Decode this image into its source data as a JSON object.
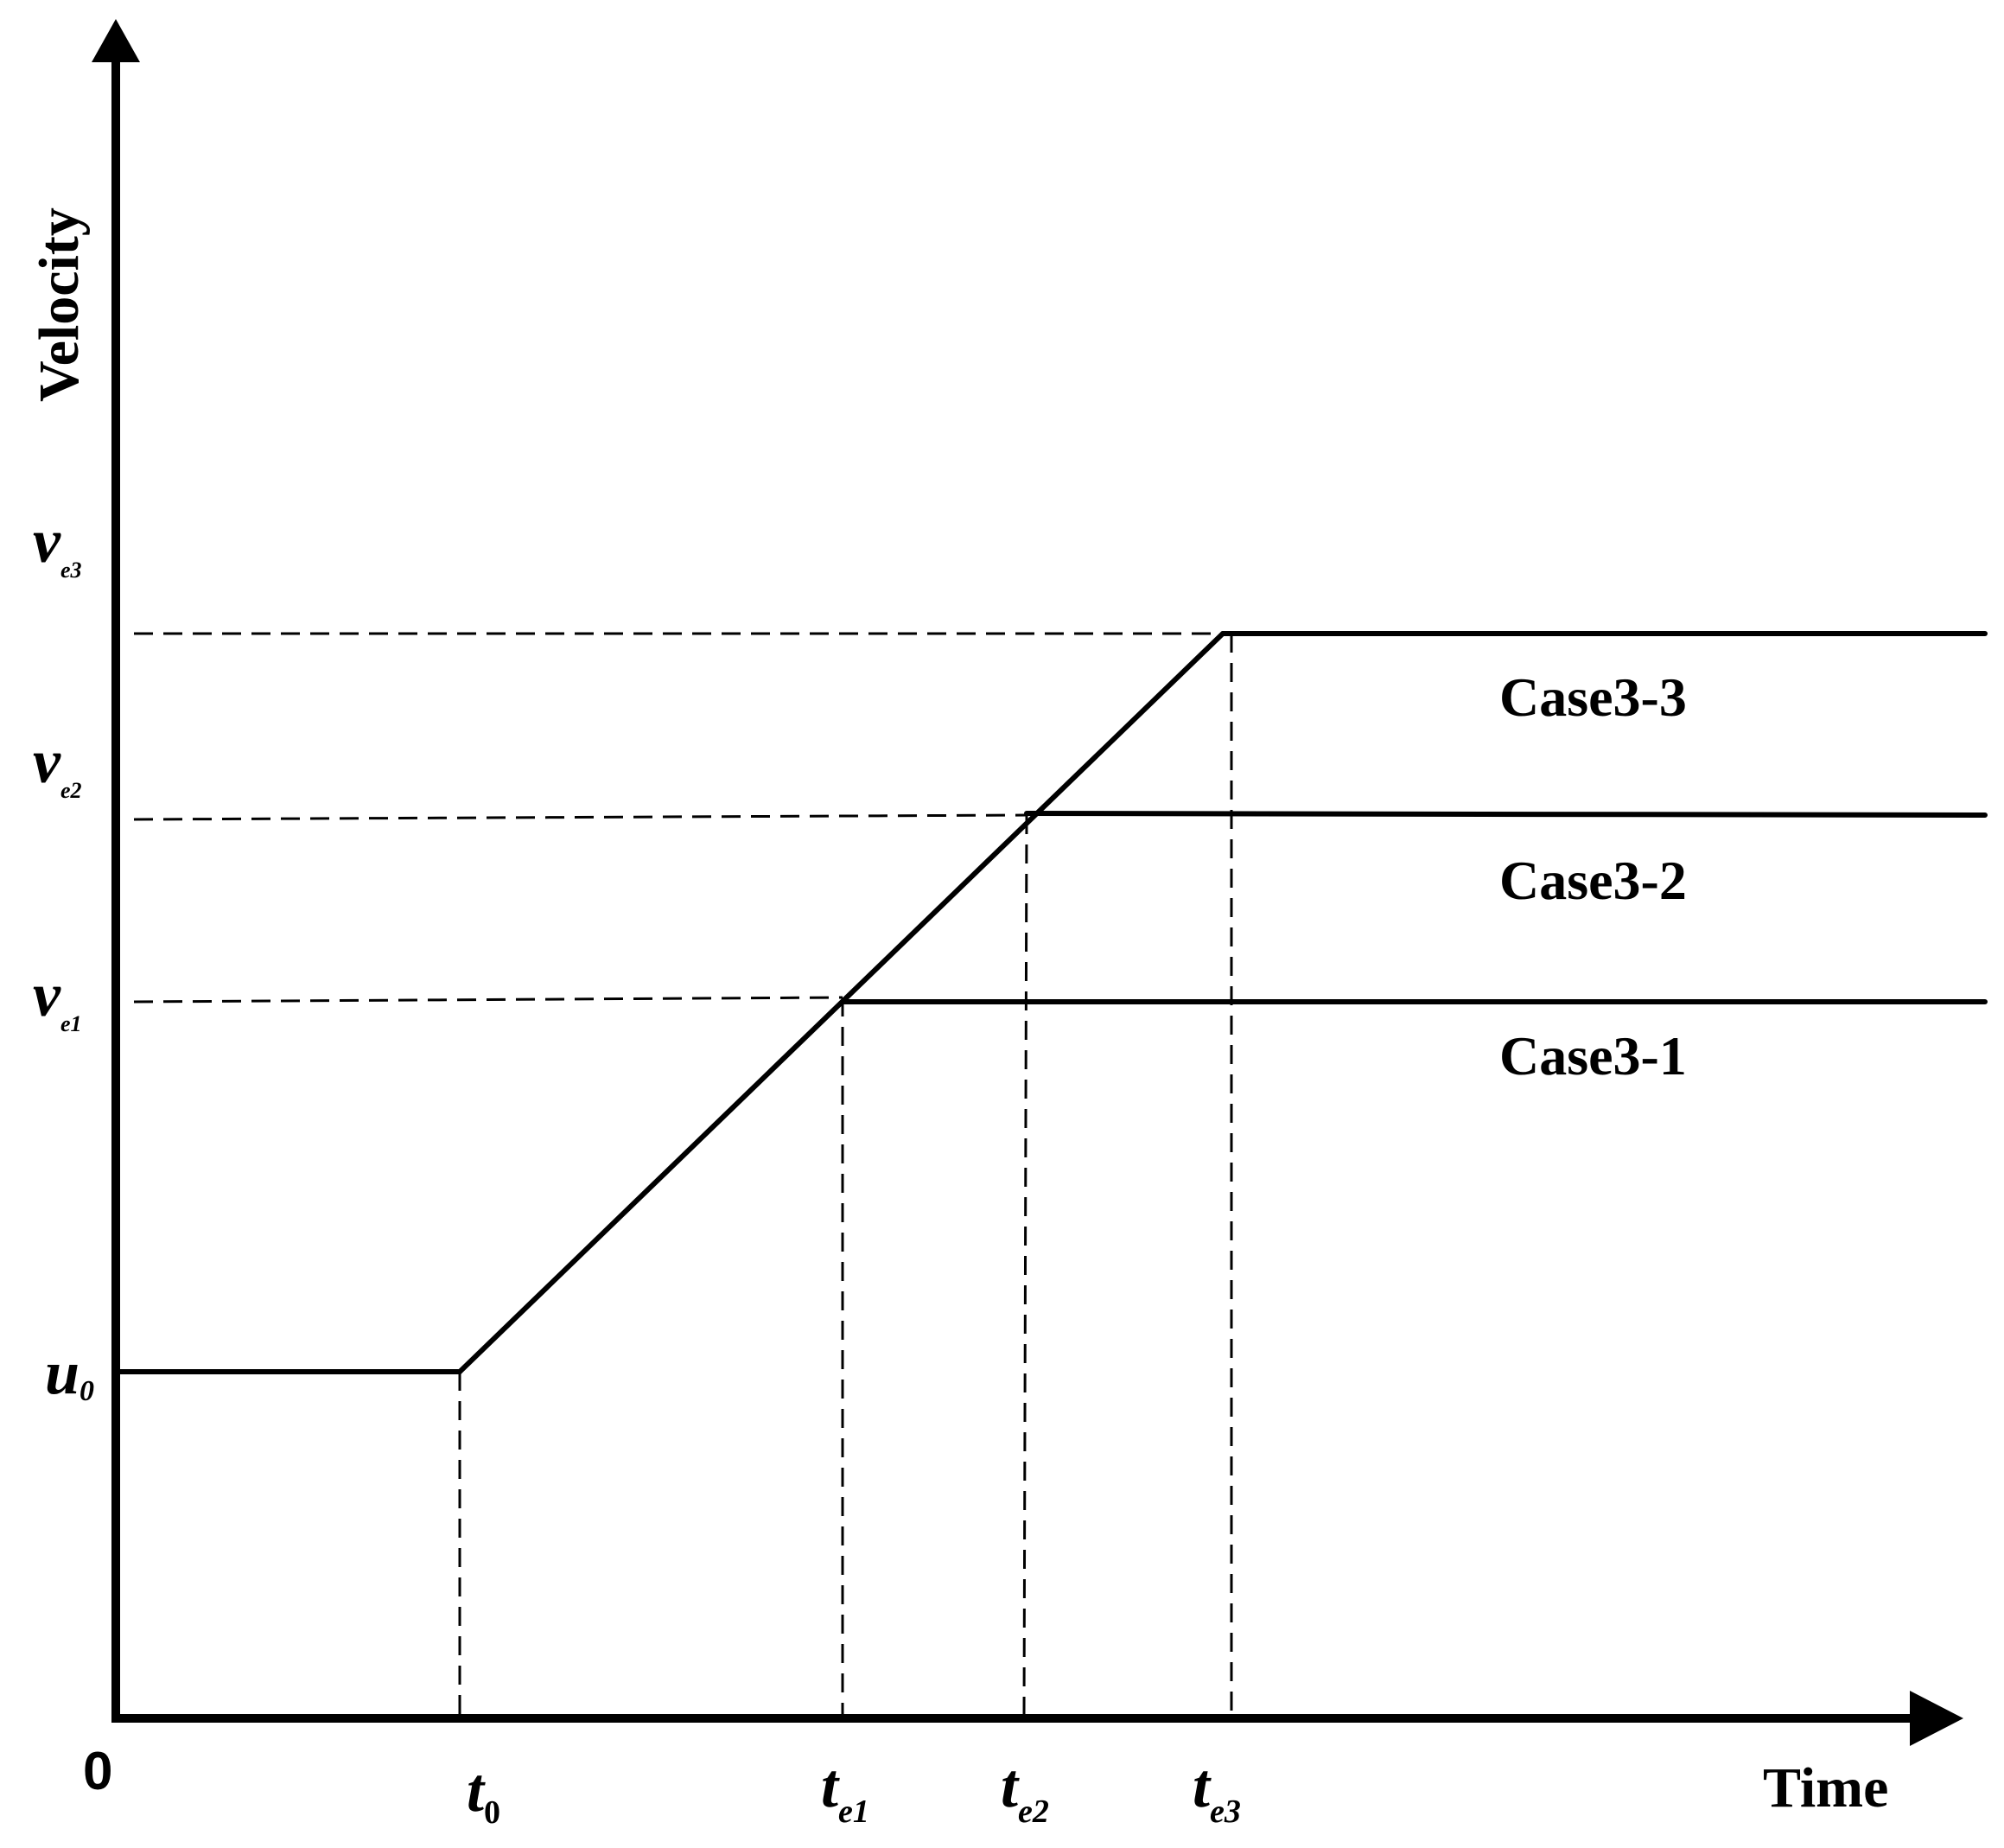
{
  "colors": {
    "line": "#000000",
    "background": "#ffffff"
  },
  "axes": {
    "y_label": "Velocity",
    "x_label": "Time",
    "origin_label": "0"
  },
  "y_ticks": {
    "u0": {
      "main": "u",
      "sub": "0"
    },
    "ve1": {
      "main": "v",
      "sub": "e1"
    },
    "ve2": {
      "main": "v",
      "sub": "e2"
    },
    "ve3": {
      "main": "v",
      "sub": "e3"
    }
  },
  "x_ticks": {
    "t0": {
      "main": "t",
      "sub": "0"
    },
    "te1": {
      "main": "t",
      "sub": "e1"
    },
    "te2": {
      "main": "t",
      "sub": "e2"
    },
    "te3": {
      "main": "t",
      "sub": "e3"
    }
  },
  "cases": {
    "case1": "Case3-1",
    "case2": "Case3-2",
    "case3": "Case3-3"
  }
}
